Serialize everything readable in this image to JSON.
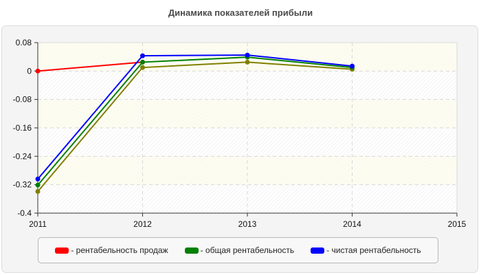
{
  "title": "Динамика показателей прибыли",
  "legend": [
    {
      "label": "- рентабельность продаж",
      "color": "#ff0000"
    },
    {
      "label": "- общая рентабельность",
      "color": "#008000"
    },
    {
      "label": "- чистая рентабельность",
      "color": "#0000ff"
    }
  ],
  "chart_data": {
    "type": "line",
    "title": "Динамика показателей прибыли",
    "xlabel": "",
    "ylabel": "",
    "x": [
      2011,
      2012,
      2013,
      2014,
      2015
    ],
    "xlim": [
      2011,
      2015
    ],
    "ylim": [
      -0.4,
      0.08
    ],
    "yticks": [
      0.08,
      0,
      -0.08,
      -0.16,
      -0.24,
      -0.32,
      -0.4
    ],
    "ytick_labels": [
      "0.08",
      "0",
      "-0.08",
      "-0.16",
      "-0.24",
      "-0.32",
      "-0.4"
    ],
    "xtick_labels": [
      "2011",
      "2012",
      "2013",
      "2014",
      "2015"
    ],
    "grid": true,
    "legend_position": "bottom",
    "series": [
      {
        "name": "рентабельность продаж",
        "color": "#ff0000",
        "x": [
          2011,
          2012
        ],
        "values": [
          0.0,
          0.025
        ]
      },
      {
        "name": "общая рентабельность",
        "color": "#008000",
        "x": [
          2011,
          2012,
          2013,
          2014
        ],
        "values": [
          -0.321,
          0.025,
          0.039,
          0.01
        ]
      },
      {
        "name": "чистая рентабельность",
        "color": "#0000ff",
        "x": [
          2011,
          2012,
          2013,
          2014
        ],
        "values": [
          -0.304,
          0.043,
          0.045,
          0.014
        ]
      },
      {
        "name": "",
        "color": "#808000",
        "x": [
          2011,
          2012,
          2013,
          2014
        ],
        "values": [
          -0.339,
          0.01,
          0.025,
          0.005
        ]
      }
    ]
  }
}
